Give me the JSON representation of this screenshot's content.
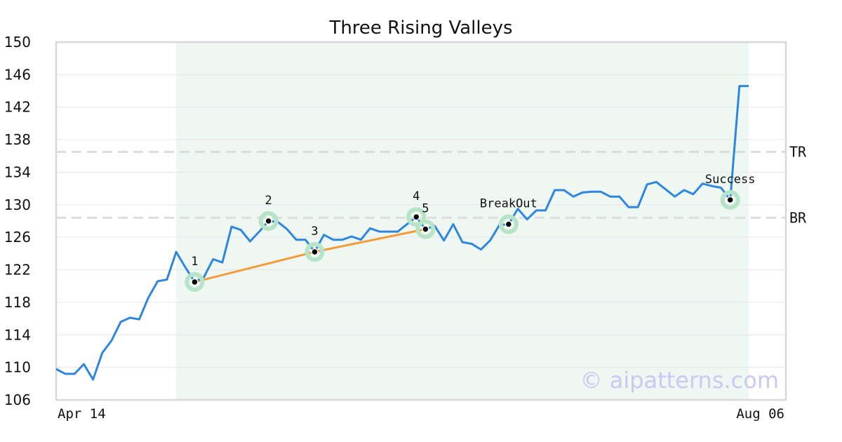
{
  "chart_data": {
    "type": "line",
    "title": "Three Rising Valleys",
    "y_ticks": [
      106,
      110,
      114,
      118,
      122,
      126,
      130,
      134,
      138,
      142,
      146,
      150
    ],
    "ylim": [
      106,
      150
    ],
    "x_tick_labels": [
      "Apr 14",
      "Aug 06"
    ],
    "grid": true,
    "colors": {
      "price": "#2e86de",
      "pattern_line": "#f39c3c",
      "highlight": "#eef7f2",
      "marker_ring": "#b7e4c7",
      "level_line": "#dddddd"
    },
    "highlight_range": [
      13,
      75
    ],
    "series": [
      {
        "values": [
          109.8,
          109.2,
          109.2,
          110.4,
          108.5,
          111.8,
          113.3,
          115.6,
          116.1,
          115.9,
          118.6,
          120.6,
          120.8,
          124.2,
          122.3,
          120.5,
          121.1,
          123.3,
          122.9,
          127.3,
          126.9,
          125.5,
          126.7,
          128.0,
          127.9,
          127.0,
          125.7,
          125.7,
          124.2,
          126.3,
          125.7,
          125.7,
          126.1,
          125.7,
          127.1,
          126.7,
          126.7,
          126.7,
          127.6,
          128.5,
          127.0,
          127.4,
          125.6,
          127.6,
          125.4,
          125.2,
          124.5,
          125.6,
          127.5,
          127.6,
          129.5,
          128.2,
          129.3,
          129.3,
          131.8,
          131.8,
          131.0,
          131.5,
          131.6,
          131.6,
          131.0,
          131.0,
          129.7,
          129.7,
          132.5,
          132.8,
          131.9,
          131.0,
          131.8,
          131.3,
          132.6,
          132.3,
          132.1,
          130.6,
          144.6,
          144.6
        ]
      }
    ],
    "levels": [
      {
        "label": "TR",
        "value": 136.5
      },
      {
        "label": "BR",
        "value": 128.4
      }
    ],
    "points": [
      {
        "label": "1",
        "index": 15,
        "value": 120.5
      },
      {
        "label": "2",
        "index": 23,
        "value": 128.0
      },
      {
        "label": "3",
        "index": 28,
        "value": 124.2
      },
      {
        "label": "4",
        "index": 39,
        "value": 128.5
      },
      {
        "label": "5",
        "index": 40,
        "value": 127.0
      },
      {
        "label": "BreakOut",
        "index": 49,
        "value": 127.6
      },
      {
        "label": "Success",
        "index": 73,
        "value": 130.6
      }
    ],
    "pattern_line": [
      {
        "index": 15,
        "value": 120.5
      },
      {
        "index": 28,
        "value": 124.2
      },
      {
        "index": 40,
        "value": 127.0
      }
    ]
  },
  "watermark": "© aipatterns.com"
}
